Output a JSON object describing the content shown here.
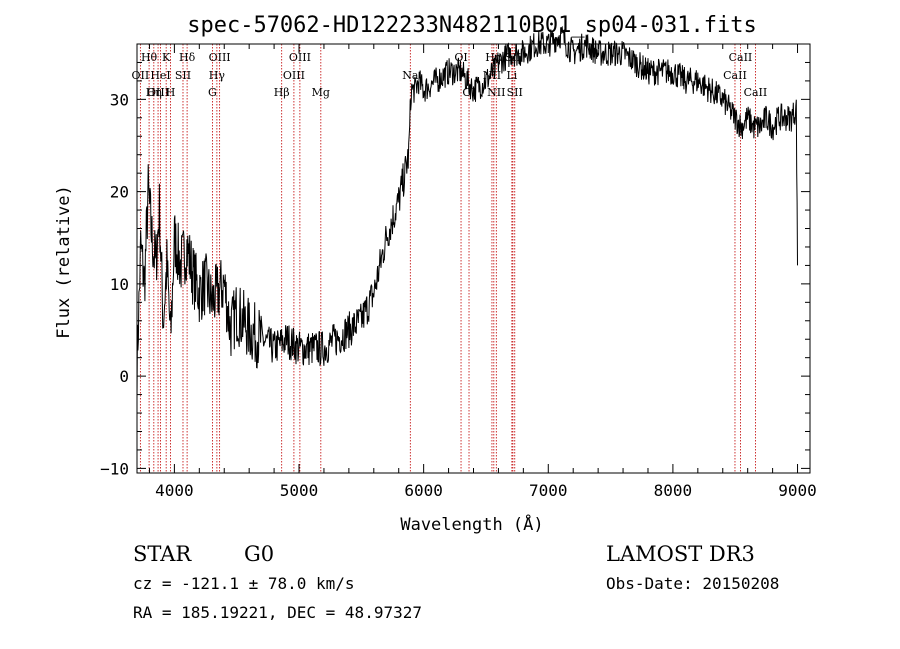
{
  "chart_data": {
    "type": "line",
    "title": "spec-57062-HD122233N482110B01_sp04-031.fits",
    "xlabel": "Wavelength (Å)",
    "ylabel": "Flux (relative)",
    "xlim": [
      3700,
      9100
    ],
    "ylim": [
      -10.5,
      36
    ],
    "xticks": [
      4000,
      5000,
      6000,
      7000,
      8000,
      9000
    ],
    "yticks": [
      -10,
      0,
      10,
      20,
      30
    ],
    "grid": false,
    "series": [
      {
        "name": "flux",
        "x": [
          3700,
          3730,
          3760,
          3790,
          3820,
          3850,
          3880,
          3910,
          3940,
          3970,
          4000,
          4050,
          4100,
          4150,
          4200,
          4250,
          4300,
          4350,
          4400,
          4450,
          4500,
          4600,
          4700,
          4800,
          4900,
          5000,
          5100,
          5200,
          5300,
          5400,
          5500,
          5600,
          5650,
          5700,
          5750,
          5800,
          5850,
          5880,
          5900,
          5930,
          5960,
          6000,
          6100,
          6200,
          6300,
          6400,
          6500,
          6560,
          6600,
          6700,
          6800,
          6900,
          7000,
          7100,
          7200,
          7300,
          7400,
          7500,
          7600,
          7700,
          7800,
          7900,
          8000,
          8100,
          8200,
          8300,
          8400,
          8500,
          8550,
          8600,
          8650,
          8700,
          8750,
          8800,
          8850,
          8900,
          8950,
          8990,
          9000
        ],
        "y": [
          1,
          14,
          10,
          20,
          15,
          12,
          18,
          6,
          12,
          4,
          15,
          12,
          14,
          11,
          9,
          10,
          8,
          9,
          10,
          5,
          7,
          5,
          4,
          3,
          4,
          3,
          3,
          3,
          4,
          5,
          6,
          9,
          12,
          15,
          17,
          19,
          22,
          24,
          31,
          31,
          32,
          31,
          32,
          33,
          33,
          31,
          32,
          33,
          34,
          35,
          35,
          36,
          36,
          37,
          35,
          36,
          35,
          35,
          35,
          34,
          33,
          33,
          33,
          32,
          32,
          31,
          30,
          28,
          27,
          28,
          27,
          27,
          28,
          27,
          28,
          28,
          28,
          29,
          12
        ]
      }
    ],
    "lines": [
      {
        "name": "Hθ",
        "wl": 3797,
        "row": 0
      },
      {
        "name": "OII",
        "wl": 3727,
        "row": 1
      },
      {
        "name": "OIII",
        "wl": 3869,
        "row": 2
      },
      {
        "name": "K",
        "wl": 3934,
        "row": 0
      },
      {
        "name": "HeI",
        "wl": 3889,
        "row": 1
      },
      {
        "name": "Hη",
        "wl": 3835,
        "row": 2
      },
      {
        "name": "Hδ",
        "wl": 4102,
        "row": 0
      },
      {
        "name": "SII",
        "wl": 4069,
        "row": 1
      },
      {
        "name": "H",
        "wl": 3969,
        "row": 2
      },
      {
        "name": "OIII",
        "wl": 4363,
        "row": 0
      },
      {
        "name": "Hγ",
        "wl": 4341,
        "row": 1
      },
      {
        "name": "G",
        "wl": 4305,
        "row": 2
      },
      {
        "name": "OIII",
        "wl": 5007,
        "row": 0
      },
      {
        "name": "OIII",
        "wl": 4959,
        "row": 1
      },
      {
        "name": "Hβ",
        "wl": 4861,
        "row": 2
      },
      {
        "name": "Mg",
        "wl": 5175,
        "row": 2
      },
      {
        "name": "Na",
        "wl": 5893,
        "row": 1
      },
      {
        "name": "OI",
        "wl": 6300,
        "row": 0
      },
      {
        "name": "OI",
        "wl": 6364,
        "row": 2
      },
      {
        "name": "Hα",
        "wl": 6563,
        "row": 0
      },
      {
        "name": "NII",
        "wl": 6548,
        "row": 1
      },
      {
        "name": "NII",
        "wl": 6583,
        "row": 2
      },
      {
        "name": "SII",
        "wl": 6716,
        "row": 0
      },
      {
        "name": "Li",
        "wl": 6708,
        "row": 1
      },
      {
        "name": "SII",
        "wl": 6731,
        "row": 2
      },
      {
        "name": "CaII",
        "wl": 8542,
        "row": 0
      },
      {
        "name": "CaII",
        "wl": 8498,
        "row": 1
      },
      {
        "name": "CaII",
        "wl": 8662,
        "row": 2
      }
    ]
  },
  "info": {
    "class_label": "STAR",
    "subclass_label": "G0",
    "survey": "LAMOST DR3",
    "cz": "cz = -121.1 ± 78.0 km/s",
    "obs_date": "Obs-Date: 20150208",
    "coords": "RA = 185.19221, DEC =  48.97327"
  }
}
